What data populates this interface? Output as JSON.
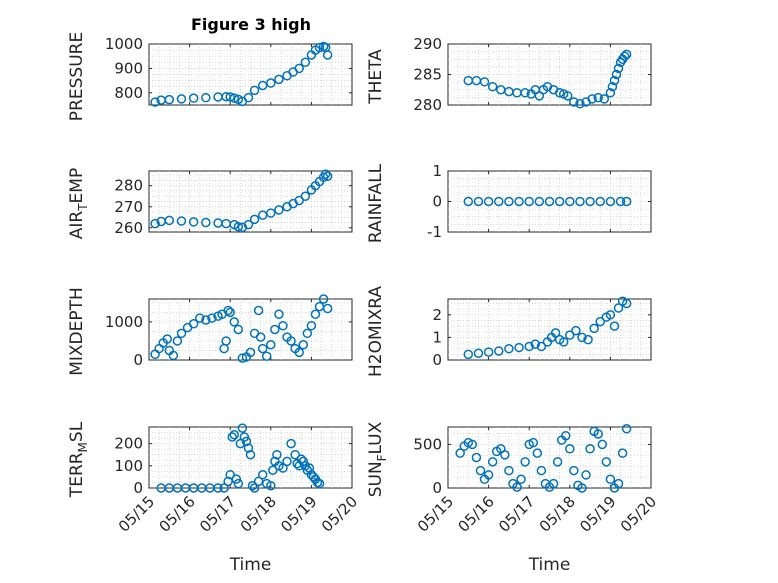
{
  "figure": {
    "title": "Figure 3 high"
  },
  "style": {
    "marker_color": "#0072BD",
    "axis_color": "#262626",
    "grid_color": "#c8c8c8"
  },
  "chart_data": [
    {
      "type": "scatter",
      "ylabel": "PRESSURE",
      "ylim": [
        750,
        1000
      ],
      "yticks": [
        800,
        900,
        1000
      ],
      "xlim": [
        0,
        5
      ],
      "grid": true,
      "x": [
        0.15,
        0.3,
        0.5,
        0.8,
        1.1,
        1.4,
        1.7,
        1.9,
        2.0,
        2.1,
        2.2,
        2.3,
        2.45,
        2.6,
        2.8,
        3.0,
        3.2,
        3.4,
        3.55,
        3.7,
        3.85,
        4.0,
        4.1,
        4.2,
        4.3,
        4.35,
        4.4
      ],
      "y": [
        762,
        770,
        772,
        775,
        778,
        780,
        783,
        784,
        783,
        778,
        773,
        765,
        780,
        810,
        830,
        840,
        855,
        870,
        885,
        900,
        925,
        955,
        975,
        985,
        990,
        985,
        955
      ]
    },
    {
      "type": "scatter",
      "ylabel": "THETA",
      "ylim": [
        280,
        290
      ],
      "yticks": [
        280,
        285,
        290
      ],
      "xlim": [
        0,
        5
      ],
      "grid": true,
      "x": [
        0.5,
        0.7,
        0.9,
        1.1,
        1.3,
        1.5,
        1.7,
        1.9,
        2.05,
        2.15,
        2.25,
        2.35,
        2.45,
        2.6,
        2.75,
        2.85,
        2.95,
        3.1,
        3.25,
        3.4,
        3.55,
        3.7,
        3.85,
        4.0,
        4.05,
        4.1,
        4.15,
        4.2,
        4.25,
        4.3,
        4.35,
        4.4
      ],
      "y": [
        284,
        284,
        283.8,
        283,
        282.5,
        282.2,
        282,
        282,
        281.8,
        282.5,
        281.5,
        282.5,
        283,
        282.5,
        282,
        281.8,
        281.5,
        280.5,
        280.2,
        280.5,
        281,
        281.2,
        281,
        282,
        283,
        284,
        285,
        286,
        287,
        287.5,
        288,
        288.3
      ]
    },
    {
      "type": "scatter",
      "ylabel": "AIR_TEMP",
      "ylim": [
        258,
        287
      ],
      "yticks": [
        260,
        270,
        280
      ],
      "xlim": [
        0,
        5
      ],
      "grid": true,
      "x": [
        0.15,
        0.3,
        0.5,
        0.8,
        1.1,
        1.4,
        1.7,
        1.9,
        2.1,
        2.2,
        2.3,
        2.45,
        2.6,
        2.8,
        3.0,
        3.2,
        3.4,
        3.55,
        3.7,
        3.85,
        4.0,
        4.1,
        4.2,
        4.3,
        4.35,
        4.4
      ],
      "y": [
        262,
        263,
        263.5,
        263.2,
        262.8,
        262.5,
        262.3,
        262,
        261.5,
        260.5,
        260.2,
        261.5,
        264,
        266,
        267,
        268.5,
        270,
        271.5,
        273,
        275,
        278,
        280,
        282,
        284,
        285.5,
        284.5
      ]
    },
    {
      "type": "scatter",
      "ylabel": "RAINFALL",
      "ylim": [
        -1,
        1
      ],
      "yticks": [
        -1,
        0,
        1
      ],
      "xlim": [
        0,
        5
      ],
      "grid": true,
      "x": [
        0.5,
        0.75,
        1.0,
        1.25,
        1.5,
        1.75,
        2.0,
        2.25,
        2.5,
        2.75,
        3.0,
        3.25,
        3.5,
        3.75,
        4.0,
        4.25,
        4.4
      ],
      "y": [
        0,
        0,
        0,
        0,
        0,
        0,
        0,
        0,
        0,
        0,
        0,
        0,
        0,
        0,
        0,
        0,
        0
      ]
    },
    {
      "type": "scatter",
      "ylabel": "MIXDEPTH",
      "ylim": [
        0,
        1600
      ],
      "yticks": [
        0,
        1000
      ],
      "xlim": [
        0,
        5
      ],
      "grid": true,
      "x": [
        0.15,
        0.25,
        0.35,
        0.45,
        0.5,
        0.6,
        0.7,
        0.8,
        0.95,
        1.1,
        1.25,
        1.4,
        1.55,
        1.7,
        1.8,
        1.85,
        1.9,
        1.95,
        2.0,
        2.1,
        2.2,
        2.3,
        2.4,
        2.5,
        2.6,
        2.7,
        2.75,
        2.8,
        2.9,
        3.0,
        3.1,
        3.2,
        3.3,
        3.4,
        3.5,
        3.6,
        3.7,
        3.8,
        3.9,
        4.0,
        4.1,
        4.2,
        4.3,
        4.4
      ],
      "y": [
        150,
        300,
        450,
        550,
        250,
        120,
        500,
        700,
        850,
        950,
        1100,
        1050,
        1100,
        1150,
        1200,
        300,
        500,
        1300,
        1250,
        1000,
        800,
        50,
        80,
        200,
        700,
        1300,
        600,
        300,
        100,
        400,
        800,
        1200,
        900,
        600,
        500,
        300,
        200,
        400,
        700,
        900,
        1200,
        1400,
        1600,
        1350
      ]
    },
    {
      "type": "scatter",
      "ylabel": "H2OMIXRA",
      "ylim": [
        0,
        2.7
      ],
      "yticks": [
        0,
        1,
        2
      ],
      "xlim": [
        0,
        5
      ],
      "grid": true,
      "x": [
        0.5,
        0.75,
        1.0,
        1.25,
        1.5,
        1.75,
        2.0,
        2.15,
        2.3,
        2.45,
        2.55,
        2.65,
        2.75,
        2.85,
        3.0,
        3.15,
        3.3,
        3.45,
        3.6,
        3.75,
        3.9,
        4.0,
        4.1,
        4.2,
        4.3,
        4.4
      ],
      "y": [
        0.25,
        0.3,
        0.35,
        0.4,
        0.5,
        0.55,
        0.6,
        0.7,
        0.6,
        0.8,
        1.0,
        1.2,
        0.9,
        0.8,
        1.1,
        1.3,
        1.0,
        0.9,
        1.4,
        1.7,
        1.9,
        2.0,
        1.5,
        2.3,
        2.6,
        2.5
      ]
    },
    {
      "type": "scatter",
      "ylabel": "TERR_MSL",
      "ylim": [
        0,
        275
      ],
      "yticks": [
        0,
        100,
        200
      ],
      "xlim": [
        0,
        5
      ],
      "xticklabels": [
        "05/15",
        "05/16",
        "05/17",
        "05/18",
        "05/19",
        "05/20"
      ],
      "xlabel": "Time",
      "grid": true,
      "x": [
        0.3,
        0.5,
        0.7,
        0.9,
        1.1,
        1.3,
        1.5,
        1.7,
        1.85,
        1.95,
        2.0,
        2.05,
        2.1,
        2.15,
        2.2,
        2.25,
        2.3,
        2.35,
        2.4,
        2.45,
        2.5,
        2.55,
        2.6,
        2.7,
        2.8,
        2.9,
        3.0,
        3.05,
        3.1,
        3.15,
        3.2,
        3.3,
        3.4,
        3.5,
        3.6,
        3.65,
        3.7,
        3.75,
        3.8,
        3.85,
        3.9,
        3.95,
        4.0,
        4.05,
        4.1,
        4.15,
        4.2
      ],
      "y": [
        0,
        0,
        0,
        0,
        0,
        0,
        0,
        0,
        0,
        30,
        60,
        230,
        240,
        40,
        20,
        200,
        270,
        230,
        210,
        180,
        150,
        10,
        0,
        30,
        60,
        20,
        10,
        80,
        120,
        150,
        100,
        90,
        120,
        200,
        150,
        110,
        100,
        130,
        120,
        100,
        80,
        90,
        60,
        50,
        40,
        25,
        20
      ]
    },
    {
      "type": "scatter",
      "ylabel": "SUN_FLUX",
      "ylim": [
        0,
        700
      ],
      "yticks": [
        0,
        500
      ],
      "xlim": [
        0,
        5
      ],
      "xticklabels": [
        "05/15",
        "05/16",
        "05/17",
        "05/18",
        "05/19",
        "05/20"
      ],
      "xlabel": "Time",
      "grid": true,
      "x": [
        0.3,
        0.4,
        0.5,
        0.6,
        0.7,
        0.8,
        0.9,
        1.0,
        1.1,
        1.2,
        1.3,
        1.4,
        1.5,
        1.6,
        1.7,
        1.8,
        1.9,
        2.0,
        2.1,
        2.2,
        2.3,
        2.4,
        2.5,
        2.6,
        2.7,
        2.8,
        2.9,
        3.0,
        3.1,
        3.2,
        3.3,
        3.4,
        3.5,
        3.6,
        3.7,
        3.8,
        3.9,
        4.0,
        4.1,
        4.2,
        4.3,
        4.4
      ],
      "y": [
        400,
        480,
        520,
        500,
        350,
        200,
        100,
        150,
        300,
        420,
        450,
        380,
        200,
        50,
        10,
        100,
        300,
        500,
        520,
        400,
        200,
        50,
        10,
        50,
        300,
        550,
        600,
        450,
        200,
        30,
        0,
        150,
        450,
        650,
        620,
        500,
        300,
        100,
        0,
        50,
        400,
        680
      ]
    }
  ]
}
